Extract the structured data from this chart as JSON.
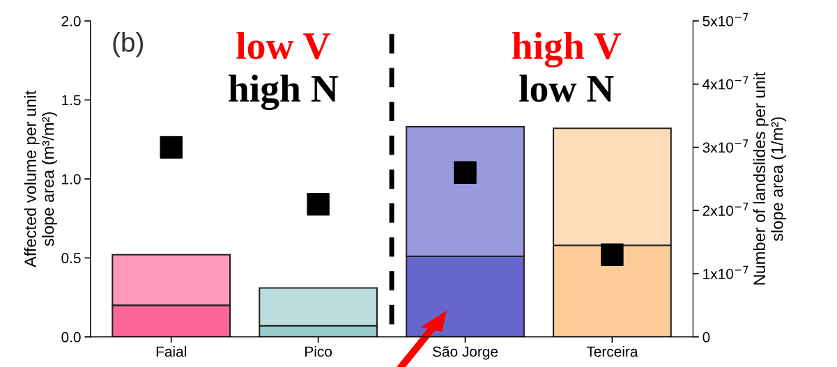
{
  "chart_data": {
    "type": "bar",
    "stacked": true,
    "categories": [
      "Faial",
      "Pico",
      "São Jorge",
      "Terceira"
    ],
    "ylabel": "Affected volume per unit\nslope area (m³/m²)",
    "y2label": "Number of landslides per unit\nslope area (1/m²)",
    "ylim": [
      0,
      2.0
    ],
    "yticks": [
      {
        "value": 0,
        "label": "0.0"
      },
      0.5,
      {
        "value": 1,
        "label": "1.0"
      },
      1.5,
      {
        "value": 2,
        "label": "2.0"
      }
    ],
    "y2lim": [
      0,
      5e-07
    ],
    "y2ticks": [
      0,
      {
        "value": 1e-07,
        "label": "1x10$^{−7}$"
      },
      {
        "value": 2e-07,
        "label": "2x10$^{−7}$"
      },
      {
        "value": 3e-07,
        "label": "3x10$^{−7}$"
      },
      {
        "value": 4e-07,
        "label": "4x10$^{−7}$"
      },
      {
        "value": 5e-07,
        "label": "5x10$^{−7}$"
      }
    ],
    "series": [
      {
        "colors": [
          "#ff6699",
          "#99cccc",
          "#6666cc",
          "#ffcc99"
        ],
        "values": [
          0.2,
          0.07,
          0.51,
          0.58
        ]
      },
      {
        "colors": [
          "#ff99bb",
          "#bbdddd",
          "#9999dd",
          "#ffddbb"
        ],
        "values": [
          0.32,
          0.24,
          0.82,
          0.74
        ]
      },
      {
        "type": "scatter",
        "axis": "y2",
        "color": "#000000",
        "marker": "square",
        "values": [
          3e-07,
          2.1e-07,
          2.6e-07,
          1.3e-07
        ]
      }
    ],
    "annotations": [
      "(b)",
      "low V",
      "high N",
      "high V",
      "low N"
    ],
    "grid": false,
    "legend": false
  }
}
